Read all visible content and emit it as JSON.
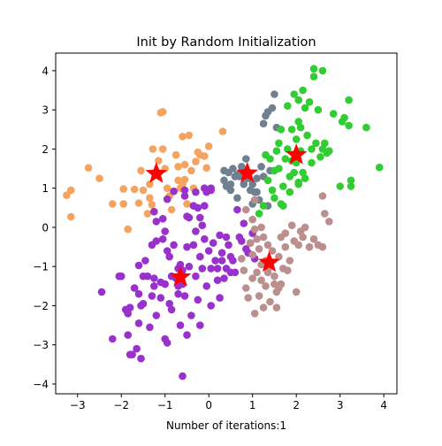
{
  "chart_data": {
    "type": "scatter",
    "title": "Init by Random Initialization",
    "xlabel": "Number of iterations:1",
    "ylabel": "",
    "xlim": [
      -3.5,
      4.3
    ],
    "ylim": [
      -4.25,
      4.45
    ],
    "xticks": [
      -3,
      -2,
      -1,
      0,
      1,
      2,
      3,
      4
    ],
    "yticks": [
      -4,
      -3,
      -2,
      -1,
      0,
      1,
      2,
      3,
      4
    ],
    "grid": false,
    "legend": "none",
    "series": [
      {
        "color": "#f4a460",
        "points": [
          [
            -2.75,
            1.52
          ],
          [
            -3.15,
            0.95
          ],
          [
            -3.25,
            0.82
          ],
          [
            -3.15,
            0.27
          ],
          [
            -2.5,
            1.25
          ],
          [
            -2.2,
            0.6
          ],
          [
            -1.95,
            0.98
          ],
          [
            -1.95,
            0.6
          ],
          [
            -1.85,
            -0.05
          ],
          [
            -1.7,
            0.97
          ],
          [
            -1.6,
            0.62
          ],
          [
            -1.55,
            1.45
          ],
          [
            -1.5,
            0.95
          ],
          [
            -1.4,
            0.35
          ],
          [
            -1.35,
            1.1
          ],
          [
            -1.35,
            0.75
          ],
          [
            -1.3,
            0.58
          ],
          [
            -1.28,
            2.0
          ],
          [
            -1.15,
            1.7
          ],
          [
            -1.05,
            2.0
          ],
          [
            -1.05,
            2.95
          ],
          [
            -1.1,
            2.93
          ],
          [
            -1.0,
            1.5
          ],
          [
            -0.95,
            1.0
          ],
          [
            -0.9,
            0.8
          ],
          [
            -0.85,
            0.45
          ],
          [
            -0.75,
            1.85
          ],
          [
            -0.7,
            1.2
          ],
          [
            -0.7,
            1.55
          ],
          [
            -0.6,
            2.32
          ],
          [
            -0.55,
            1.22
          ],
          [
            -0.5,
            0.6
          ],
          [
            -0.55,
            1.6
          ],
          [
            -0.45,
            2.35
          ],
          [
            -0.4,
            1.45
          ],
          [
            -0.35,
            1.0
          ],
          [
            -0.3,
            1.68
          ],
          [
            -0.25,
            1.92
          ],
          [
            -0.2,
            1.85
          ],
          [
            -0.1,
            1.82
          ],
          [
            -0.05,
            1.52
          ],
          [
            0.0,
            2.07
          ],
          [
            0.32,
            2.45
          ],
          [
            -0.65,
            1.0
          ],
          [
            -0.6,
            1.1
          ]
        ]
      },
      {
        "color": "#9932cc",
        "points": [
          [
            -2.45,
            -1.65
          ],
          [
            -2.2,
            -2.85
          ],
          [
            -2.05,
            -1.25
          ],
          [
            -2.0,
            -1.25
          ],
          [
            -1.9,
            -2.1
          ],
          [
            -1.85,
            -2.2
          ],
          [
            -1.85,
            -2.75
          ],
          [
            -1.8,
            -2.05
          ],
          [
            -1.75,
            -3.25
          ],
          [
            -1.7,
            -1.55
          ],
          [
            -1.65,
            -3.1
          ],
          [
            -1.6,
            -2.45
          ],
          [
            -1.8,
            -3.25
          ],
          [
            -1.7,
            -1.55
          ],
          [
            -1.5,
            -1.95
          ],
          [
            -1.5,
            -1.25
          ],
          [
            -1.6,
            -1.7
          ],
          [
            -1.6,
            -0.97
          ],
          [
            -1.55,
            -3.35
          ],
          [
            -1.45,
            -0.85
          ],
          [
            -1.4,
            -1.25
          ],
          [
            -1.35,
            -2.55
          ],
          [
            -1.3,
            -1.75
          ],
          [
            -1.3,
            -0.45
          ],
          [
            -1.25,
            -1.3
          ],
          [
            -1.25,
            -1.5
          ],
          [
            -1.2,
            -0.35
          ],
          [
            -1.2,
            -2.25
          ],
          [
            -1.1,
            -1.4
          ],
          [
            -1.1,
            -1.8
          ],
          [
            -1.05,
            -0.3
          ],
          [
            -1.0,
            -0.1
          ],
          [
            -1.0,
            -1.45
          ],
          [
            -1.0,
            -2.85
          ],
          [
            -0.95,
            -2.95
          ],
          [
            -0.95,
            -0.6
          ],
          [
            -0.9,
            -0.75
          ],
          [
            -0.9,
            -1.95
          ],
          [
            -0.85,
            -1.25
          ],
          [
            -0.85,
            -2.1
          ],
          [
            -0.8,
            -0.45
          ],
          [
            -0.75,
            -1.3
          ],
          [
            -0.7,
            -1.5
          ],
          [
            -0.7,
            -1.7
          ],
          [
            -0.65,
            -0.95
          ],
          [
            -0.65,
            -2.5
          ],
          [
            -0.6,
            -1.1
          ],
          [
            -0.6,
            -1.45
          ],
          [
            -0.55,
            -1.75
          ],
          [
            -0.5,
            -0.5
          ],
          [
            -0.5,
            -2.75
          ],
          [
            -0.45,
            -1.0
          ],
          [
            -0.4,
            -2.25
          ],
          [
            -0.35,
            -0.45
          ],
          [
            -0.3,
            -1.25
          ],
          [
            -0.3,
            -0.1
          ],
          [
            -0.25,
            -1.85
          ],
          [
            -0.2,
            -0.75
          ],
          [
            -0.2,
            -2.5
          ],
          [
            -0.15,
            -1.05
          ],
          [
            -0.1,
            -0.3
          ],
          [
            -0.05,
            -1.5
          ],
          [
            0.0,
            -0.6
          ],
          [
            0.05,
            -1.05
          ],
          [
            0.05,
            -2.0
          ],
          [
            0.1,
            -0.4
          ],
          [
            0.15,
            -0.85
          ],
          [
            0.2,
            -1.05
          ],
          [
            0.2,
            -1.35
          ],
          [
            0.25,
            -0.2
          ],
          [
            0.25,
            -1.8
          ],
          [
            0.3,
            -0.65
          ],
          [
            0.3,
            -0.85
          ],
          [
            0.35,
            -1.3
          ],
          [
            0.4,
            -0.25
          ],
          [
            0.4,
            -1.05
          ],
          [
            0.45,
            -0.45
          ],
          [
            0.5,
            -1.15
          ],
          [
            0.5,
            -0.75
          ],
          [
            0.55,
            -0.85
          ],
          [
            0.6,
            -1.15
          ],
          [
            0.65,
            0.45
          ],
          [
            0.7,
            -0.25
          ],
          [
            0.75,
            -0.35
          ],
          [
            0.8,
            0.1
          ],
          [
            0.85,
            -0.55
          ],
          [
            0.9,
            -0.65
          ],
          [
            0.95,
            -0.4
          ],
          [
            1.0,
            -0.15
          ],
          [
            1.05,
            -0.8
          ],
          [
            -1.25,
            0.4
          ],
          [
            -1.05,
            0.22
          ],
          [
            -0.8,
            0.92
          ],
          [
            -0.55,
            0.8
          ],
          [
            -0.5,
            0.28
          ],
          [
            -0.45,
            0.25
          ],
          [
            -0.35,
            0.55
          ],
          [
            -0.25,
            0.5
          ],
          [
            -0.2,
            0.25
          ],
          [
            -0.15,
            0.05
          ],
          [
            -0.1,
            0.55
          ],
          [
            -0.05,
            0.9
          ],
          [
            0.05,
            0.95
          ],
          [
            -0.3,
            0.9
          ],
          [
            -0.55,
            0.95
          ],
          [
            -0.1,
            1.0
          ],
          [
            0.05,
            1.0
          ],
          [
            -1.2,
            0.15
          ],
          [
            -0.95,
            0.72
          ],
          [
            -0.6,
            -3.8
          ],
          [
            -0.7,
            -1.05
          ],
          [
            -1.55,
            -2.0
          ]
        ]
      },
      {
        "color": "#708090",
        "points": [
          [
            0.35,
            1.2
          ],
          [
            0.4,
            1.05
          ],
          [
            0.45,
            1.4
          ],
          [
            0.5,
            0.95
          ],
          [
            0.5,
            1.1
          ],
          [
            0.55,
            1.5
          ],
          [
            0.6,
            1.3
          ],
          [
            0.65,
            1.35
          ],
          [
            0.65,
            0.75
          ],
          [
            0.7,
            1.3
          ],
          [
            0.75,
            1.55
          ],
          [
            0.8,
            1.45
          ],
          [
            0.8,
            1.1
          ],
          [
            0.85,
            1.75
          ],
          [
            0.9,
            1.25
          ],
          [
            0.95,
            0.95
          ],
          [
            1.0,
            1.1
          ],
          [
            1.0,
            0.6
          ],
          [
            1.05,
            0.9
          ],
          [
            1.1,
            0.9
          ],
          [
            1.1,
            1.25
          ],
          [
            1.15,
            0.7
          ],
          [
            1.2,
            1.55
          ],
          [
            1.25,
            1.3
          ],
          [
            1.25,
            2.65
          ],
          [
            1.3,
            2.85
          ],
          [
            1.35,
            2.95
          ],
          [
            1.35,
            0.55
          ],
          [
            1.4,
            1.45
          ],
          [
            1.45,
            3.05
          ],
          [
            1.5,
            3.4
          ],
          [
            1.55,
            2.55
          ],
          [
            0.35,
            1.45
          ]
        ]
      },
      {
        "color": "#32cd32",
        "points": [
          [
            1.15,
            0.35
          ],
          [
            1.25,
            0.55
          ],
          [
            1.3,
            1.85
          ],
          [
            1.35,
            1.2
          ],
          [
            1.4,
            1.75
          ],
          [
            1.45,
            0.95
          ],
          [
            1.5,
            0.75
          ],
          [
            1.5,
            1.45
          ],
          [
            1.55,
            1.95
          ],
          [
            1.6,
            2.15
          ],
          [
            1.6,
            1.5
          ],
          [
            1.65,
            0.6
          ],
          [
            1.7,
            1.05
          ],
          [
            1.7,
            0.55
          ],
          [
            1.75,
            1.75
          ],
          [
            1.8,
            2.0
          ],
          [
            1.85,
            1.3
          ],
          [
            1.85,
            0.9
          ],
          [
            1.9,
            2.5
          ],
          [
            1.9,
            1.7
          ],
          [
            1.95,
            1.4
          ],
          [
            2.0,
            2.25
          ],
          [
            2.0,
            1.65
          ],
          [
            2.05,
            1.15
          ],
          [
            2.05,
            2.7
          ],
          [
            2.1,
            1.95
          ],
          [
            2.1,
            2.55
          ],
          [
            2.15,
            1.4
          ],
          [
            2.2,
            3.05
          ],
          [
            2.2,
            1.25
          ],
          [
            2.25,
            2.35
          ],
          [
            2.3,
            3.2
          ],
          [
            2.35,
            1.65
          ],
          [
            2.35,
            2.0
          ],
          [
            2.4,
            3.85
          ],
          [
            2.45,
            2.15
          ],
          [
            2.5,
            3.0
          ],
          [
            2.55,
            1.8
          ],
          [
            2.6,
            4.0
          ],
          [
            2.65,
            2.15
          ],
          [
            2.7,
            1.9
          ],
          [
            2.75,
            1.95
          ],
          [
            2.85,
            2.9
          ],
          [
            3.0,
            1.05
          ],
          [
            3.05,
            2.7
          ],
          [
            3.1,
            2.8
          ],
          [
            3.2,
            2.6
          ],
          [
            3.25,
            1.2
          ],
          [
            3.2,
            3.25
          ],
          [
            3.25,
            1.05
          ],
          [
            3.6,
            2.55
          ],
          [
            3.9,
            1.53
          ],
          [
            2.05,
            3.25
          ],
          [
            2.4,
            4.05
          ],
          [
            1.8,
            3.1
          ],
          [
            2.15,
            3.5
          ],
          [
            1.95,
            3.4
          ],
          [
            2.6,
            2.0
          ],
          [
            1.65,
            2.5
          ],
          [
            2.05,
            1.1
          ]
        ]
      },
      {
        "color": "#bc8f8f",
        "points": [
          [
            0.75,
            -0.8
          ],
          [
            0.8,
            -1.1
          ],
          [
            0.85,
            -1.55
          ],
          [
            0.9,
            -1.8
          ],
          [
            0.95,
            -0.4
          ],
          [
            1.0,
            -1.3
          ],
          [
            1.0,
            0.2
          ],
          [
            1.05,
            -2.2
          ],
          [
            1.1,
            -1.15
          ],
          [
            1.15,
            -0.55
          ],
          [
            1.15,
            -1.75
          ],
          [
            1.2,
            -0.95
          ],
          [
            1.2,
            -1.35
          ],
          [
            1.25,
            -2.05
          ],
          [
            1.25,
            -0.25
          ],
          [
            1.3,
            -0.85
          ],
          [
            1.35,
            -1.15
          ],
          [
            1.35,
            -0.45
          ],
          [
            1.4,
            -1.9
          ],
          [
            1.45,
            -0.6
          ],
          [
            1.5,
            -1.25
          ],
          [
            1.5,
            -1.45
          ],
          [
            1.55,
            -2.05
          ],
          [
            1.6,
            -1.55
          ],
          [
            1.6,
            -0.75
          ],
          [
            1.65,
            -0.25
          ],
          [
            1.7,
            -1.05
          ],
          [
            1.75,
            -0.15
          ],
          [
            1.75,
            -0.5
          ],
          [
            1.8,
            -1.1
          ],
          [
            1.85,
            -0.85
          ],
          [
            1.9,
            0.05
          ],
          [
            1.95,
            -0.35
          ],
          [
            2.0,
            -1.65
          ],
          [
            2.05,
            -0.45
          ],
          [
            2.1,
            -0.1
          ],
          [
            2.15,
            -0.25
          ],
          [
            2.2,
            0.0
          ],
          [
            2.3,
            -0.5
          ],
          [
            2.4,
            -0.3
          ],
          [
            2.5,
            -0.45
          ],
          [
            2.6,
            -0.5
          ],
          [
            2.65,
            0.35
          ],
          [
            2.75,
            0.15
          ],
          [
            1.0,
            -0.7
          ],
          [
            1.05,
            -0.05
          ],
          [
            1.2,
            0.0
          ],
          [
            1.3,
            -1.5
          ],
          [
            1.4,
            -1.0
          ],
          [
            1.55,
            -1.65
          ],
          [
            1.65,
            -1.45
          ],
          [
            2.6,
            0.8
          ],
          [
            0.85,
            0.45
          ],
          [
            1.05,
            0.7
          ],
          [
            1.1,
            -0.3
          ]
        ]
      }
    ],
    "centroids": {
      "color": "#ff0000",
      "points": [
        [
          -1.2,
          1.37
        ],
        [
          0.88,
          1.38
        ],
        [
          2.0,
          1.85
        ],
        [
          -0.65,
          -1.27
        ],
        [
          1.38,
          -0.9
        ]
      ]
    }
  }
}
